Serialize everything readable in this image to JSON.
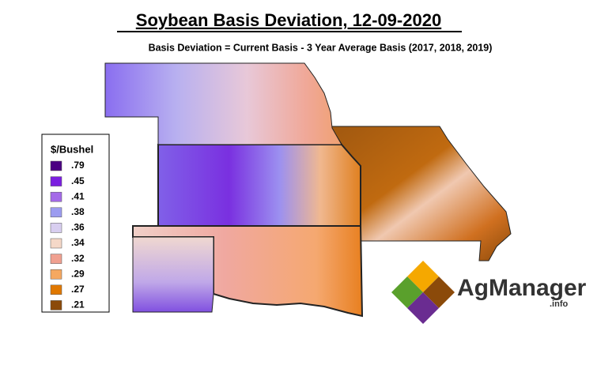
{
  "header": {
    "title": "Soybean Basis Deviation, 12-09-2020",
    "subtitle": "Basis Deviation = Current Basis - 3 Year Average Basis (2017, 2018, 2019)"
  },
  "legend": {
    "title": "$/Bushel",
    "items": [
      {
        "label": ".79",
        "color": "#4b0082"
      },
      {
        "label": ".45",
        "color": "#7b1fe0"
      },
      {
        "label": ".41",
        "color": "#a46ae8"
      },
      {
        "label": ".38",
        "color": "#9c9cf0"
      },
      {
        "label": ".36",
        "color": "#d8cef0"
      },
      {
        "label": ".34",
        "color": "#f5d8c8"
      },
      {
        "label": ".32",
        "color": "#f0a090"
      },
      {
        "label": ".29",
        "color": "#f5a860"
      },
      {
        "label": ".27",
        "color": "#e07800"
      },
      {
        "label": ".21",
        "color": "#8b4a0a"
      }
    ]
  },
  "logo": {
    "name": "AgManager",
    "suffix": ".info"
  }
}
